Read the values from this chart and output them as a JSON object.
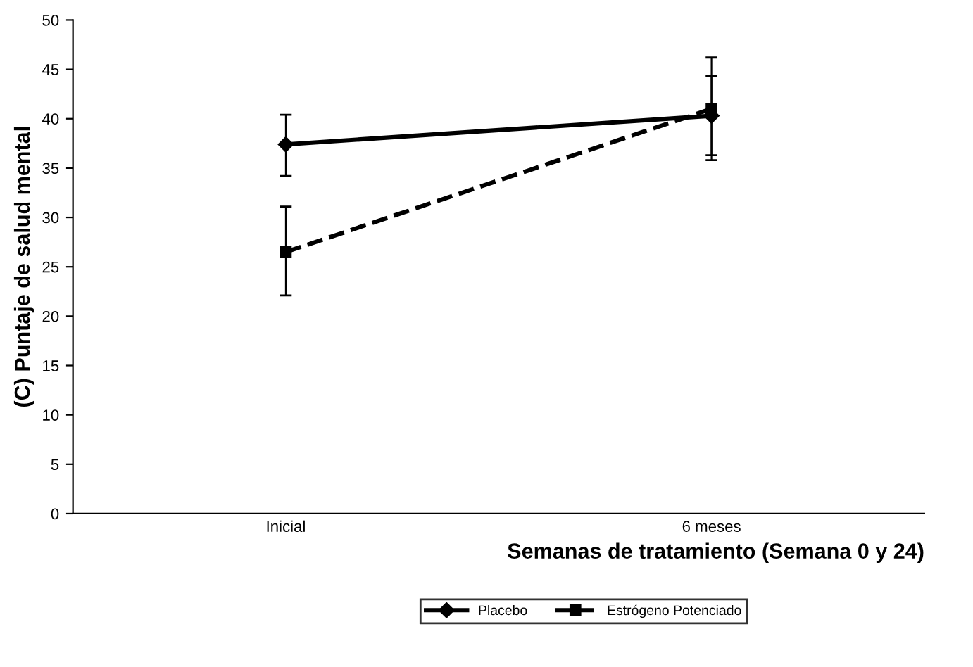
{
  "chart_data": {
    "type": "line",
    "xlabel": "Semanas de tratamiento (Semana 0 y 24)",
    "ylabel": "(C) Puntaje de salud mental",
    "categories": [
      "Inicial",
      "6 meses"
    ],
    "series": [
      {
        "name": "Placebo",
        "color": "#000000",
        "values": [
          37.4,
          40.3
        ],
        "errors": [
          [
            34.2,
            40.4
          ],
          [
            36.3,
            44.3
          ]
        ],
        "marker": "diamond",
        "line_style": "solid"
      },
      {
        "name": "Estrógeno Potenciado",
        "color": "#000000",
        "values": [
          26.5,
          41.0
        ],
        "errors": [
          [
            22.1,
            31.1
          ],
          [
            35.8,
            46.2
          ]
        ],
        "marker": "square",
        "line_style": "dashed"
      }
    ],
    "ylim": [
      0,
      50
    ],
    "yticks": [
      0,
      5,
      10,
      15,
      20,
      25,
      30,
      35,
      40,
      45,
      50
    ],
    "grid": false,
    "legend": "bottom"
  }
}
